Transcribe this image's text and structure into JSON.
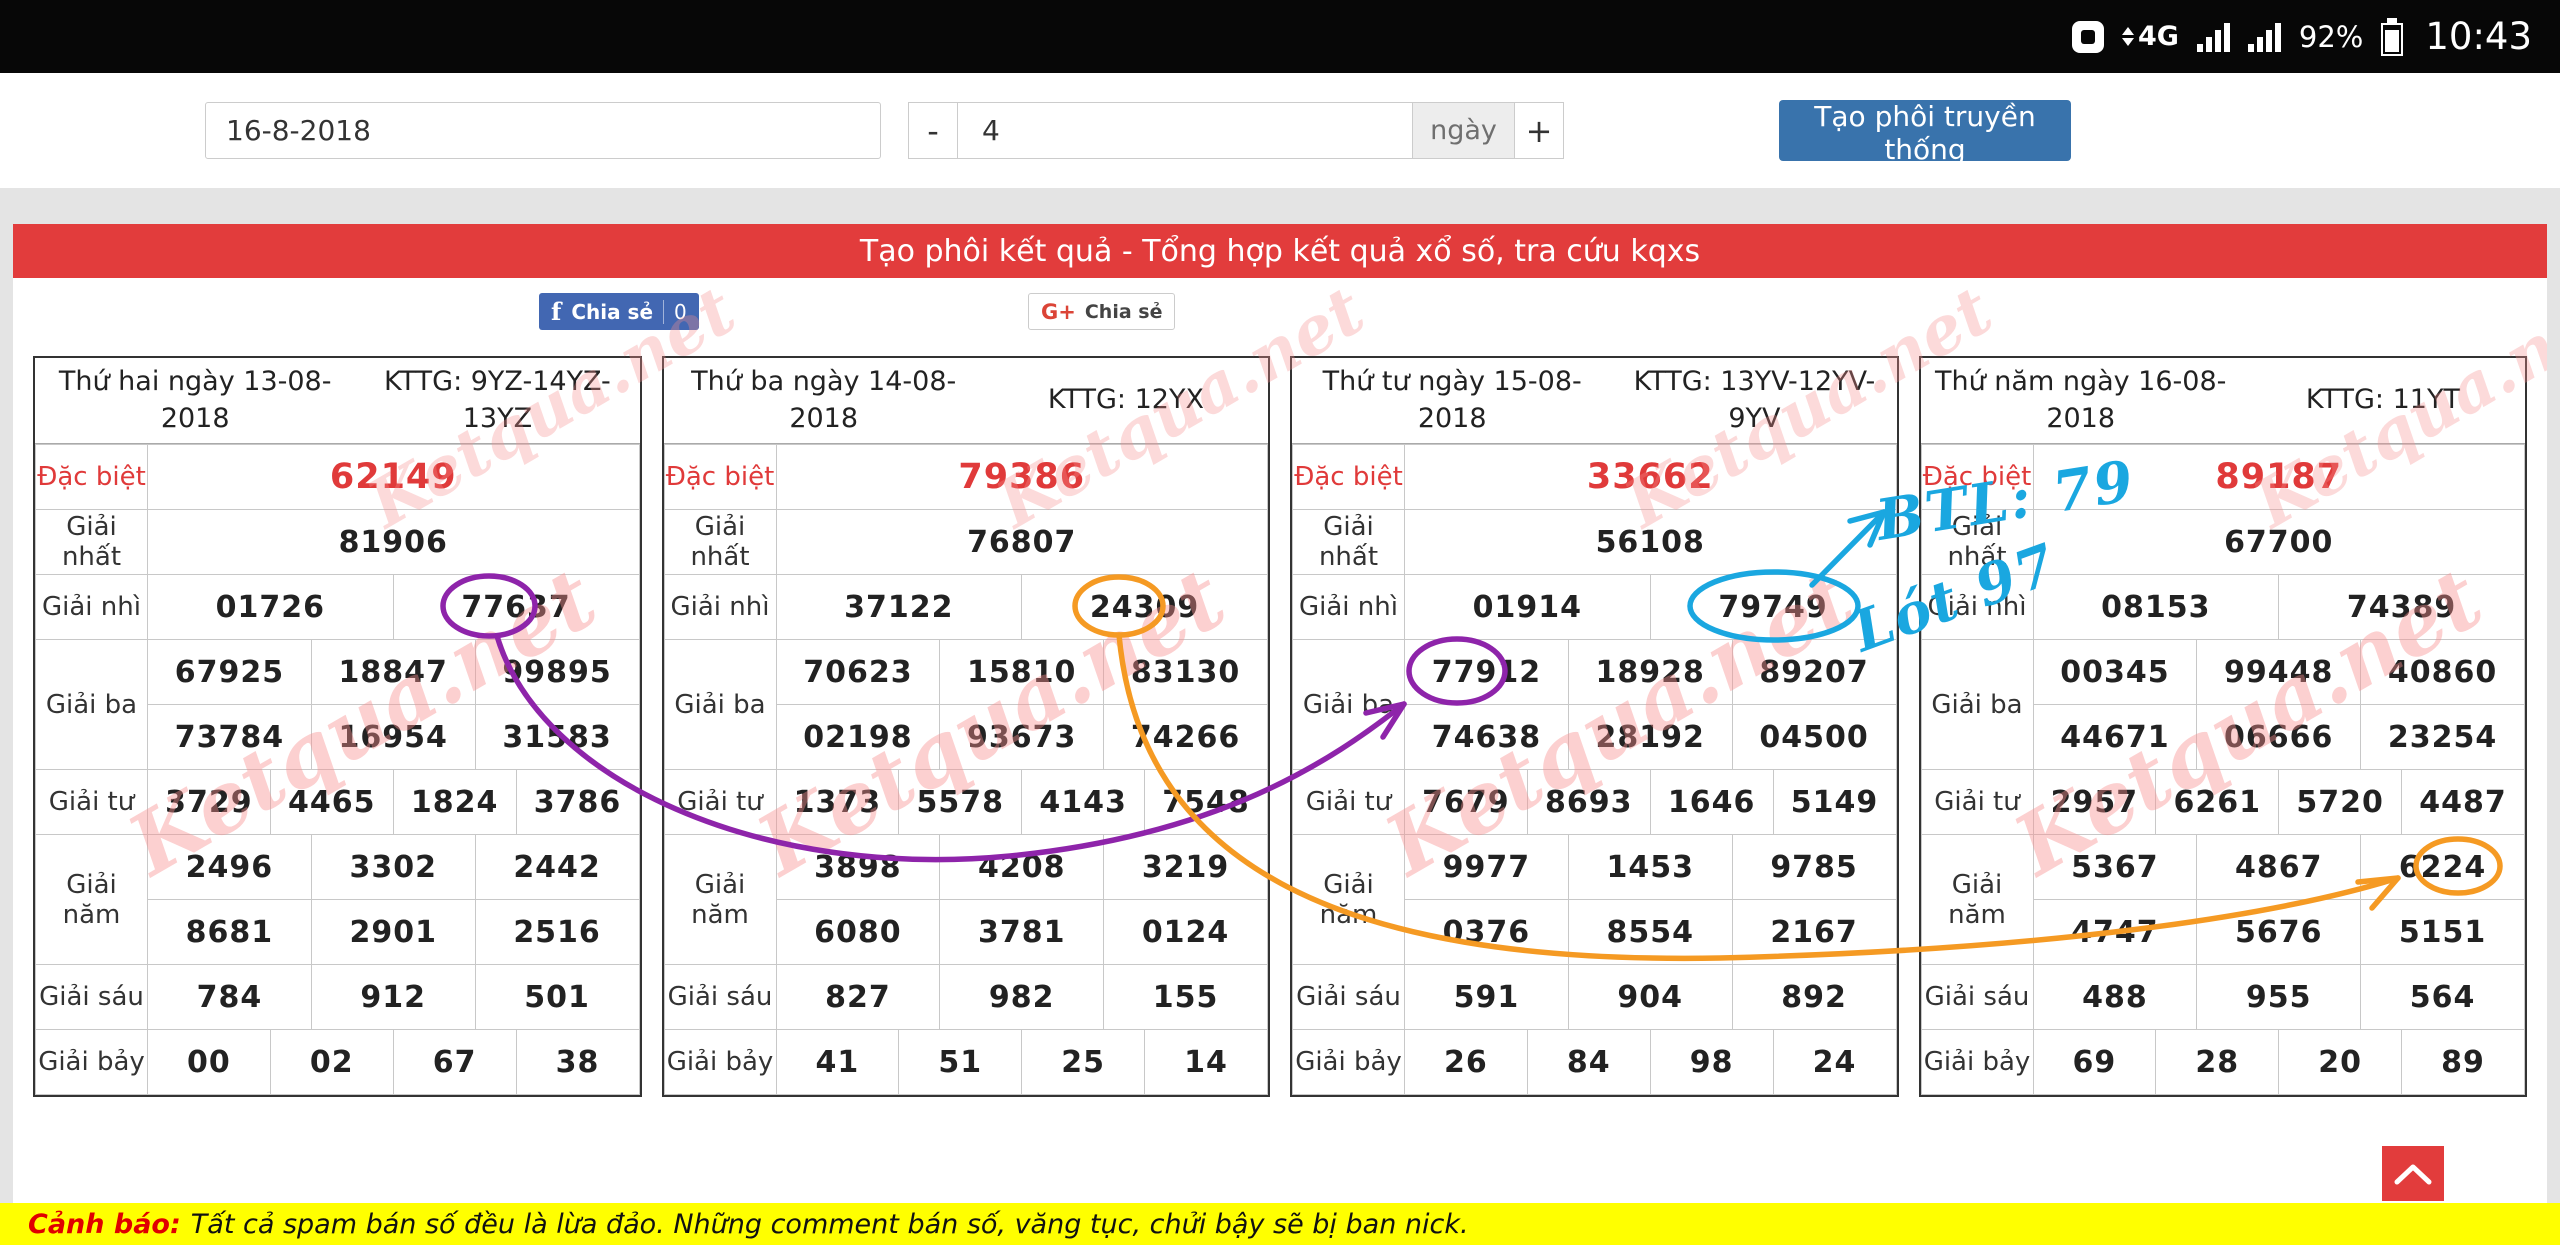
{
  "status_bar": {
    "network": "4G",
    "battery_percent": "92%",
    "time": "10:43"
  },
  "toolbar": {
    "date_value": "16-8-2018",
    "decrement_label": "-",
    "days_value": "4",
    "days_unit": "ngày",
    "increment_label": "+",
    "submit_label": "Tạo phôi truyền thống"
  },
  "header": {
    "title": "Tạo phôi kết quả - Tổng hợp kết quả xổ số, tra cứu kqxs"
  },
  "share": {
    "facebook_glyph": "f",
    "facebook_label": "Chia sẻ",
    "facebook_count": "0",
    "google_glyph": "G+",
    "google_label": "Chia sẻ"
  },
  "row_labels": {
    "special": "Đặc biệt",
    "first": "Giải nhất",
    "second": "Giải nhì",
    "third": "Giải ba",
    "fourth": "Giải tư",
    "fifth": "Giải năm",
    "sixth": "Giải sáu",
    "seventh": "Giải bảy"
  },
  "tables": [
    {
      "day": "Thứ hai ngày 13-08-2018",
      "kttg": "KTTG: 9YZ-14YZ-13YZ",
      "special": "62149",
      "first": "81906",
      "second": [
        "01726",
        "77637"
      ],
      "third": [
        "67925",
        "18847",
        "99895",
        "73784",
        "16954",
        "31583"
      ],
      "fourth": [
        "3729",
        "4465",
        "1824",
        "3786"
      ],
      "fifth": [
        "2496",
        "3302",
        "2442",
        "8681",
        "2901",
        "2516"
      ],
      "sixth": [
        "784",
        "912",
        "501"
      ],
      "seventh": [
        "00",
        "02",
        "67",
        "38"
      ]
    },
    {
      "day": "Thứ ba ngày 14-08-2018",
      "kttg": "KTTG: 12YX",
      "special": "79386",
      "first": "76807",
      "second": [
        "37122",
        "24309"
      ],
      "third": [
        "70623",
        "15810",
        "83130",
        "02198",
        "93673",
        "74266"
      ],
      "fourth": [
        "1373",
        "5578",
        "4143",
        "7548"
      ],
      "fifth": [
        "3898",
        "4208",
        "3219",
        "6080",
        "3781",
        "0124"
      ],
      "sixth": [
        "827",
        "982",
        "155"
      ],
      "seventh": [
        "41",
        "51",
        "25",
        "14"
      ]
    },
    {
      "day": "Thứ tư ngày 15-08-2018",
      "kttg": "KTTG: 13YV-12YV-9YV",
      "special": "33662",
      "first": "56108",
      "second": [
        "01914",
        "79749"
      ],
      "third": [
        "77912",
        "18928",
        "89207",
        "74638",
        "28192",
        "04500"
      ],
      "fourth": [
        "7679",
        "8693",
        "1646",
        "5149"
      ],
      "fifth": [
        "9977",
        "1453",
        "9785",
        "0376",
        "8554",
        "2167"
      ],
      "sixth": [
        "591",
        "904",
        "892"
      ],
      "seventh": [
        "26",
        "84",
        "98",
        "24"
      ]
    },
    {
      "day": "Thứ năm ngày 16-08-2018",
      "kttg": "KTTG: 11YT",
      "special": "89187",
      "first": "67700",
      "second": [
        "08153",
        "74389"
      ],
      "third": [
        "00345",
        "99448",
        "40860",
        "44671",
        "06666",
        "23254"
      ],
      "fourth": [
        "2957",
        "6261",
        "5720",
        "4487"
      ],
      "fifth": [
        "5367",
        "4867",
        "6224",
        "4747",
        "5676",
        "5151"
      ],
      "sixth": [
        "488",
        "955",
        "564"
      ],
      "seventh": [
        "69",
        "28",
        "20",
        "89"
      ]
    }
  ],
  "annotations": {
    "btl_text": "BTL: 79",
    "lot_text": "Lót 97",
    "purple": "#8e24aa",
    "orange": "#f59a23",
    "blue": "#1aa7e0"
  },
  "watermark": "Ketqua.net",
  "warning": {
    "label": "Cảnh báo:",
    "text": "Tất cả spam bán số đều là lừa đảo. Những comment bán số, văng tục, chửi bậy sẽ bị ban nick."
  },
  "colors": {
    "header_red": "#e23c3c",
    "special_red": "#e03a3a",
    "accent_blue": "#3973ac",
    "facebook_blue": "#4267b2",
    "warning_yellow": "#ffff00"
  }
}
